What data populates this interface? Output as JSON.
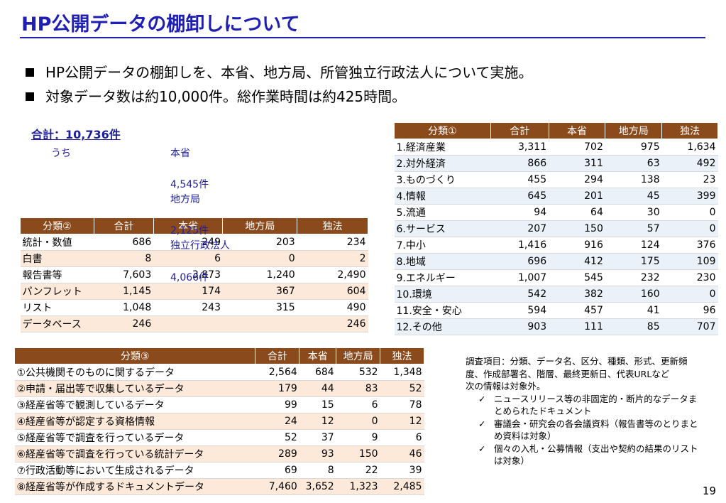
{
  "title": "HP公開データの棚卸しについて",
  "bullets": [
    "HP公開データの棚卸しを、本省、地方局、所管独立行政法人について実施。",
    "対象データ数は約10,000件。総作業時間は約425時間。"
  ],
  "total": "合計：10,736件",
  "breakdown": {
    "uchi": "うち",
    "honsho_label": "本省",
    "honsho_value": "4,545件",
    "chihou_label": "地方局",
    "chihou_value": "2,125件",
    "dokuho_label": "独立行政法人",
    "dokuho_value": "4,066件"
  },
  "table2": {
    "headers": [
      "分類②",
      "合計",
      "本省",
      "地方局",
      "独法"
    ],
    "rows": [
      [
        "統計・数値",
        "686",
        "249",
        "203",
        "234"
      ],
      [
        "白書",
        "8",
        "6",
        "0",
        "2"
      ],
      [
        "報告書等",
        "7,603",
        "3,873",
        "1,240",
        "2,490"
      ],
      [
        "パンフレット",
        "1,145",
        "174",
        "367",
        "604"
      ],
      [
        "リスト",
        "1,048",
        "243",
        "315",
        "490"
      ],
      [
        "データベース",
        "246",
        "",
        "",
        "246"
      ]
    ]
  },
  "table1": {
    "headers": [
      "分類①",
      "合計",
      "本省",
      "地方局",
      "独法"
    ],
    "rows": [
      [
        "1.経済産業",
        "3,311",
        "702",
        "975",
        "1,634"
      ],
      [
        "2.対外経済",
        "866",
        "311",
        "63",
        "492"
      ],
      [
        "3.ものづくり",
        "455",
        "294",
        "138",
        "23"
      ],
      [
        "4.情報",
        "645",
        "201",
        "45",
        "399"
      ],
      [
        "5.流通",
        "94",
        "64",
        "30",
        "0"
      ],
      [
        "6.サービス",
        "207",
        "150",
        "57",
        "0"
      ],
      [
        "7.中小",
        "1,416",
        "916",
        "124",
        "376"
      ],
      [
        "8.地域",
        "696",
        "412",
        "175",
        "109"
      ],
      [
        "9.エネルギー",
        "1,007",
        "545",
        "232",
        "230"
      ],
      [
        "10.環境",
        "542",
        "382",
        "160",
        "0"
      ],
      [
        "11.安全・安心",
        "594",
        "457",
        "41",
        "96"
      ],
      [
        "12.その他",
        "903",
        "111",
        "85",
        "707"
      ]
    ]
  },
  "table3": {
    "headers": [
      "分類③",
      "合計",
      "本省",
      "地方局",
      "独法"
    ],
    "rows": [
      [
        "①公共機関そのものに関するデータ",
        "2,564",
        "684",
        "532",
        "1,348"
      ],
      [
        "②申請・届出等で収集しているデータ",
        "179",
        "44",
        "83",
        "52"
      ],
      [
        "③経産省等で観測しているデータ",
        "99",
        "15",
        "6",
        "78"
      ],
      [
        "④経産省等が認定する資格情報",
        "24",
        "12",
        "0",
        "12"
      ],
      [
        "⑤経産省等で調査を行っているデータ",
        "52",
        "37",
        "9",
        "6"
      ],
      [
        "⑥経産省等で調査を行っている統計データ",
        "289",
        "93",
        "150",
        "46"
      ],
      [
        "⑦行政活動等において生成されるデータ",
        "69",
        "8",
        "22",
        "39"
      ],
      [
        "⑧経産省等が作成するドキュメントデータ",
        "7,460",
        "3,652",
        "1,323",
        "2,485"
      ]
    ]
  },
  "note": {
    "line1": "調査項目：分類、データ名、区分、種類、形式、更新頻度、作成部署名、階層、最終更新日、代表URLなど",
    "line2": "次の情報は対象外。",
    "items": [
      "ニュースリリース等の非固定的・断片的なデータまとめられたドキュメント",
      "審議会・研究会の各会議資料（報告書等のとりまとめ資料は対象）",
      "個々の入札・公募情報（支出や契約の結果のリストは対象）"
    ],
    "check": "✓"
  },
  "page_number": "19",
  "colors": {
    "title": "#1f1fb4",
    "header_bg": "#8b4a1c",
    "row_blue": "#eaf1f8",
    "row_orange": "#fde9d9"
  }
}
